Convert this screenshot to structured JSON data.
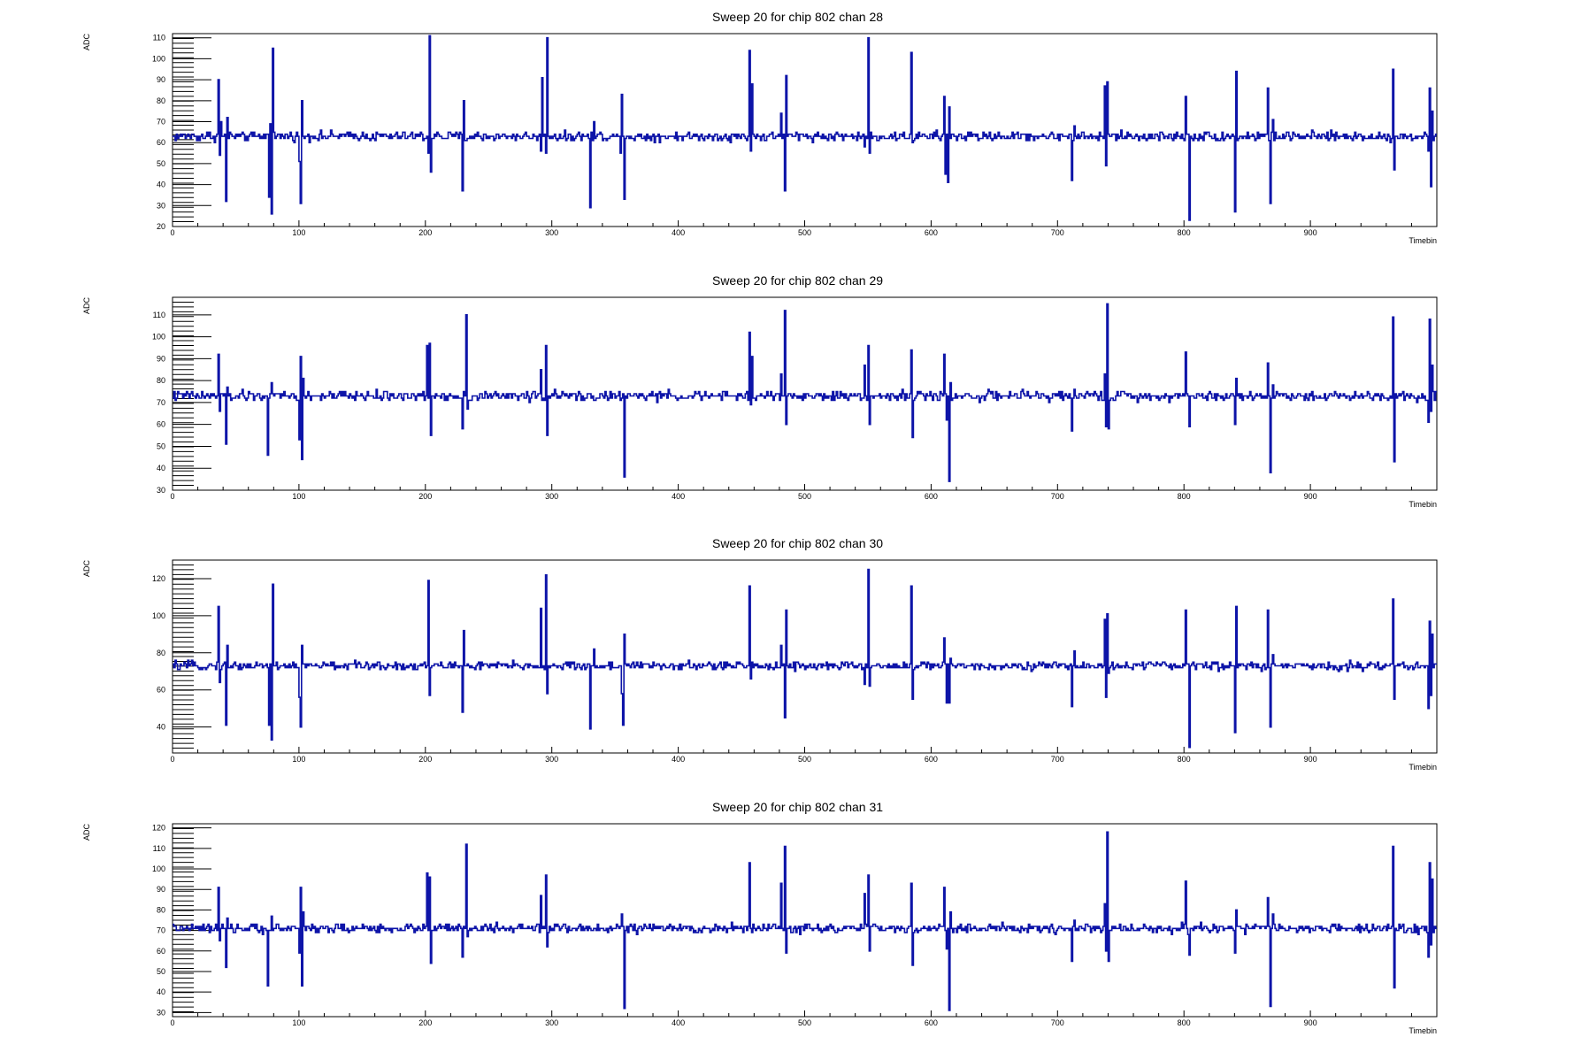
{
  "chart_data": [
    {
      "type": "line",
      "title": "Sweep 20 for chip 802 chan 28",
      "xlabel": "Timebin",
      "ylabel": "ADC",
      "xlim": [
        0,
        1000
      ],
      "ylim": [
        20,
        112
      ],
      "x_ticks": [
        0,
        100,
        200,
        300,
        400,
        500,
        600,
        700,
        800,
        900
      ],
      "y_ticks": [
        20,
        30,
        40,
        50,
        60,
        70,
        80,
        90,
        100,
        110
      ],
      "baseline": 63,
      "spikes": [
        [
          36,
          90
        ],
        [
          37,
          54
        ],
        [
          38,
          70
        ],
        [
          42,
          32
        ],
        [
          43,
          72
        ],
        [
          76,
          34
        ],
        [
          77,
          69
        ],
        [
          78,
          26
        ],
        [
          79,
          105
        ],
        [
          100,
          51
        ],
        [
          101,
          31
        ],
        [
          102,
          80
        ],
        [
          202,
          55
        ],
        [
          203,
          111
        ],
        [
          204,
          46
        ],
        [
          229,
          37
        ],
        [
          230,
          80
        ],
        [
          232,
          61
        ],
        [
          291,
          56
        ],
        [
          292,
          91
        ],
        [
          295,
          55
        ],
        [
          296,
          110
        ],
        [
          330,
          29
        ],
        [
          333,
          70
        ],
        [
          354,
          55
        ],
        [
          355,
          83
        ],
        [
          357,
          33
        ],
        [
          456,
          104
        ],
        [
          457,
          56
        ],
        [
          458,
          88
        ],
        [
          481,
          74
        ],
        [
          482,
          62
        ],
        [
          484,
          37
        ],
        [
          485,
          92
        ],
        [
          547,
          58
        ],
        [
          550,
          110
        ],
        [
          551,
          55
        ],
        [
          584,
          103
        ],
        [
          585,
          60
        ],
        [
          610,
          82
        ],
        [
          611,
          45
        ],
        [
          613,
          41
        ],
        [
          614,
          77
        ],
        [
          711,
          42
        ],
        [
          713,
          68
        ],
        [
          737,
          87
        ],
        [
          738,
          49
        ],
        [
          739,
          89
        ],
        [
          801,
          82
        ],
        [
          804,
          23
        ],
        [
          840,
          27
        ],
        [
          841,
          94
        ],
        [
          866,
          86
        ],
        [
          868,
          31
        ],
        [
          870,
          71
        ],
        [
          965,
          95
        ],
        [
          966,
          47
        ],
        [
          993,
          56
        ],
        [
          994,
          86
        ],
        [
          995,
          39
        ],
        [
          996,
          75
        ]
      ]
    },
    {
      "type": "line",
      "title": "Sweep 20 for chip 802 chan 29",
      "xlabel": "Timebin",
      "ylabel": "ADC",
      "xlim": [
        0,
        1000
      ],
      "ylim": [
        30,
        118
      ],
      "x_ticks": [
        0,
        100,
        200,
        300,
        400,
        500,
        600,
        700,
        800,
        900
      ],
      "y_ticks": [
        30,
        40,
        50,
        60,
        70,
        80,
        90,
        100,
        110
      ],
      "baseline": 73,
      "spikes": [
        [
          36,
          92
        ],
        [
          37,
          66
        ],
        [
          42,
          51
        ],
        [
          43,
          77
        ],
        [
          75,
          46
        ],
        [
          78,
          79
        ],
        [
          100,
          53
        ],
        [
          101,
          91
        ],
        [
          102,
          44
        ],
        [
          103,
          81
        ],
        [
          201,
          96
        ],
        [
          203,
          97
        ],
        [
          204,
          55
        ],
        [
          229,
          58
        ],
        [
          232,
          110
        ],
        [
          233,
          67
        ],
        [
          291,
          85
        ],
        [
          295,
          96
        ],
        [
          296,
          55
        ],
        [
          355,
          72
        ],
        [
          357,
          36
        ],
        [
          456,
          102
        ],
        [
          457,
          69
        ],
        [
          458,
          91
        ],
        [
          481,
          83
        ],
        [
          484,
          112
        ],
        [
          485,
          60
        ],
        [
          547,
          87
        ],
        [
          550,
          96
        ],
        [
          551,
          60
        ],
        [
          584,
          94
        ],
        [
          585,
          54
        ],
        [
          610,
          92
        ],
        [
          612,
          62
        ],
        [
          614,
          34
        ],
        [
          615,
          79
        ],
        [
          711,
          57
        ],
        [
          713,
          76
        ],
        [
          737,
          83
        ],
        [
          738,
          59
        ],
        [
          739,
          115
        ],
        [
          740,
          58
        ],
        [
          801,
          93
        ],
        [
          804,
          59
        ],
        [
          840,
          60
        ],
        [
          841,
          81
        ],
        [
          866,
          88
        ],
        [
          868,
          38
        ],
        [
          870,
          78
        ],
        [
          965,
          109
        ],
        [
          966,
          43
        ],
        [
          993,
          61
        ],
        [
          994,
          108
        ],
        [
          995,
          66
        ],
        [
          996,
          87
        ]
      ]
    },
    {
      "type": "line",
      "title": "Sweep 20 for chip 802 chan 30",
      "xlabel": "Timebin",
      "ylabel": "ADC",
      "xlim": [
        0,
        1000
      ],
      "ylim": [
        26,
        130
      ],
      "x_ticks": [
        0,
        100,
        200,
        300,
        400,
        500,
        600,
        700,
        800,
        900
      ],
      "y_ticks": [
        40,
        60,
        80,
        100,
        120
      ],
      "baseline": 73,
      "spikes": [
        [
          36,
          105
        ],
        [
          37,
          64
        ],
        [
          42,
          41
        ],
        [
          43,
          84
        ],
        [
          76,
          41
        ],
        [
          78,
          33
        ],
        [
          79,
          117
        ],
        [
          100,
          56
        ],
        [
          101,
          40
        ],
        [
          102,
          84
        ],
        [
          202,
          119
        ],
        [
          203,
          57
        ],
        [
          229,
          48
        ],
        [
          230,
          92
        ],
        [
          291,
          104
        ],
        [
          295,
          122
        ],
        [
          296,
          58
        ],
        [
          330,
          39
        ],
        [
          333,
          82
        ],
        [
          355,
          58
        ],
        [
          356,
          41
        ],
        [
          357,
          90
        ],
        [
          456,
          116
        ],
        [
          457,
          66
        ],
        [
          481,
          84
        ],
        [
          484,
          45
        ],
        [
          485,
          103
        ],
        [
          547,
          63
        ],
        [
          550,
          125
        ],
        [
          551,
          62
        ],
        [
          584,
          116
        ],
        [
          585,
          55
        ],
        [
          610,
          88
        ],
        [
          612,
          53
        ],
        [
          614,
          53
        ],
        [
          615,
          77
        ],
        [
          711,
          51
        ],
        [
          713,
          81
        ],
        [
          737,
          98
        ],
        [
          738,
          56
        ],
        [
          739,
          101
        ],
        [
          740,
          69
        ],
        [
          801,
          103
        ],
        [
          804,
          29
        ],
        [
          840,
          37
        ],
        [
          841,
          105
        ],
        [
          866,
          103
        ],
        [
          868,
          40
        ],
        [
          870,
          79
        ],
        [
          965,
          109
        ],
        [
          966,
          55
        ],
        [
          993,
          50
        ],
        [
          994,
          97
        ],
        [
          995,
          57
        ],
        [
          996,
          90
        ]
      ]
    },
    {
      "type": "line",
      "title": "Sweep 20 for chip 802 chan 31",
      "xlabel": "Timebin",
      "ylabel": "ADC",
      "xlim": [
        0,
        1000
      ],
      "ylim": [
        28,
        122
      ],
      "x_ticks": [
        0,
        100,
        200,
        300,
        400,
        500,
        600,
        700,
        800,
        900
      ],
      "y_ticks": [
        30,
        40,
        50,
        60,
        70,
        80,
        90,
        100,
        110,
        120
      ],
      "baseline": 71,
      "spikes": [
        [
          36,
          91
        ],
        [
          37,
          65
        ],
        [
          42,
          52
        ],
        [
          43,
          76
        ],
        [
          75,
          43
        ],
        [
          78,
          77
        ],
        [
          100,
          59
        ],
        [
          101,
          91
        ],
        [
          102,
          43
        ],
        [
          103,
          79
        ],
        [
          201,
          98
        ],
        [
          203,
          96
        ],
        [
          204,
          54
        ],
        [
          229,
          57
        ],
        [
          232,
          112
        ],
        [
          233,
          67
        ],
        [
          291,
          87
        ],
        [
          295,
          97
        ],
        [
          296,
          62
        ],
        [
          355,
          78
        ],
        [
          357,
          32
        ],
        [
          456,
          103
        ],
        [
          457,
          71
        ],
        [
          481,
          93
        ],
        [
          484,
          111
        ],
        [
          485,
          59
        ],
        [
          547,
          88
        ],
        [
          550,
          97
        ],
        [
          551,
          60
        ],
        [
          584,
          93
        ],
        [
          585,
          53
        ],
        [
          610,
          91
        ],
        [
          612,
          61
        ],
        [
          614,
          31
        ],
        [
          615,
          79
        ],
        [
          711,
          55
        ],
        [
          713,
          75
        ],
        [
          737,
          83
        ],
        [
          738,
          60
        ],
        [
          739,
          118
        ],
        [
          740,
          55
        ],
        [
          801,
          94
        ],
        [
          804,
          58
        ],
        [
          840,
          59
        ],
        [
          841,
          80
        ],
        [
          866,
          86
        ],
        [
          868,
          33
        ],
        [
          870,
          78
        ],
        [
          965,
          111
        ],
        [
          966,
          42
        ],
        [
          993,
          57
        ],
        [
          994,
          103
        ],
        [
          995,
          63
        ],
        [
          996,
          95
        ]
      ]
    }
  ]
}
